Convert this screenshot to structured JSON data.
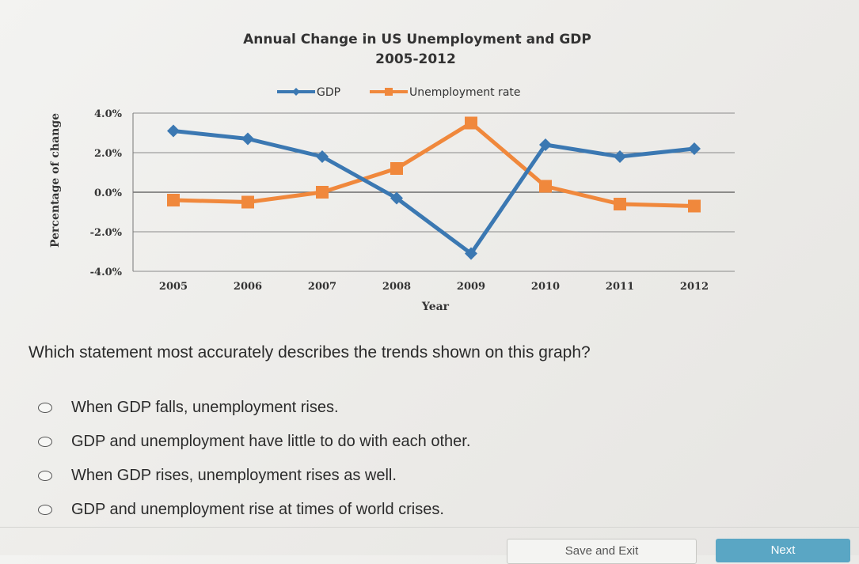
{
  "chart_data": {
    "type": "line",
    "title": "Annual Change in US Unemployment and GDP",
    "subtitle": "2005-2012",
    "xlabel": "Year",
    "ylabel": "Percentage of change",
    "categories": [
      "2005",
      "2006",
      "2007",
      "2008",
      "2009",
      "2010",
      "2011",
      "2012"
    ],
    "y_ticks": [
      "4.0%",
      "2.0%",
      "0.0%",
      "-2.0%",
      "-4.0%"
    ],
    "ylim": [
      -4.0,
      4.0
    ],
    "grid": "horizontal",
    "legend_position": "top",
    "series": [
      {
        "name": "GDP",
        "color": "#3b78b2",
        "marker": "diamond",
        "values": [
          3.1,
          2.7,
          1.8,
          -0.3,
          -3.1,
          2.4,
          1.8,
          2.2
        ]
      },
      {
        "name": "Unemployment rate",
        "color": "#f0883c",
        "marker": "square",
        "values": [
          -0.4,
          -0.5,
          0.0,
          1.2,
          3.5,
          0.3,
          -0.6,
          -0.7
        ]
      }
    ]
  },
  "question": "Which statement most accurately describes the trends shown on this graph?",
  "options": [
    "When GDP falls, unemployment rises.",
    "GDP and unemployment have little to do with each other.",
    "When GDP rises, unemployment rises as well.",
    "GDP and unemployment rise at times of world crises."
  ],
  "buttons": {
    "save_exit": "Save and Exit",
    "next": "Next"
  }
}
